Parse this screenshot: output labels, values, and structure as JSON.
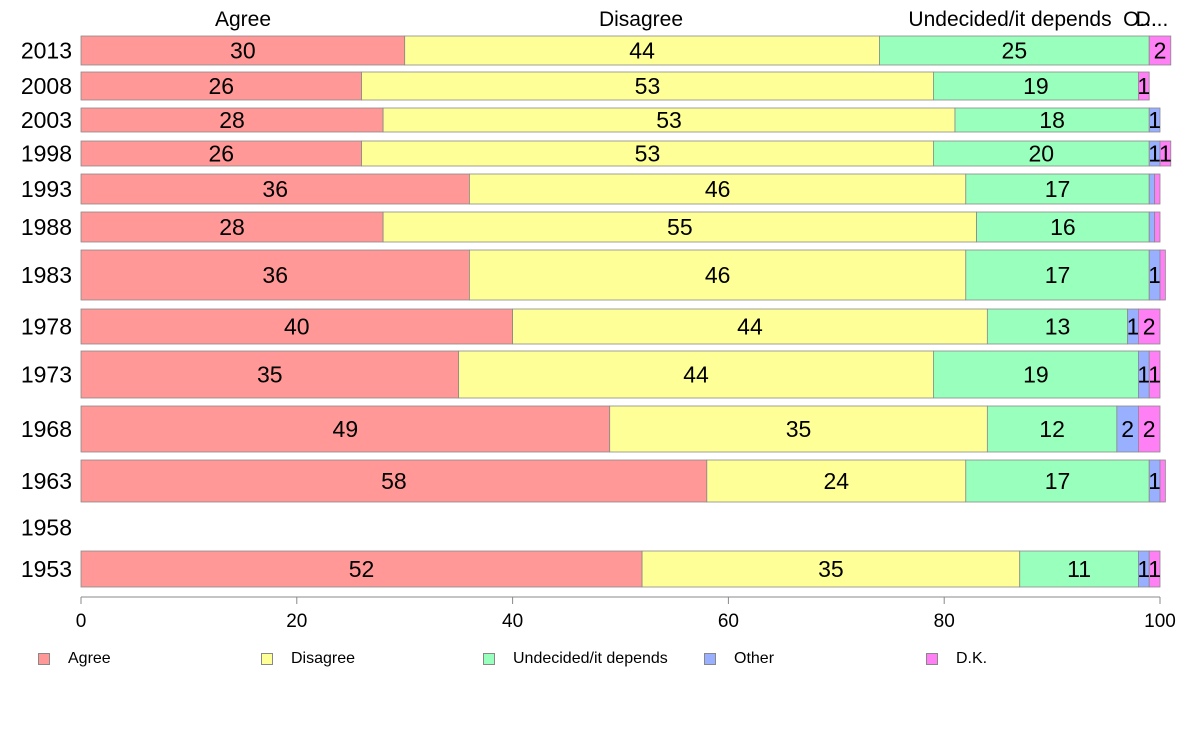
{
  "colors": {
    "Agree": "#ff9896",
    "Disagree": "#ffff98",
    "Undecided/it depends": "#98ffbd",
    "Other": "#98b0ff",
    "D.K.": "#ff7ff5"
  },
  "column_headers": [
    "Agree",
    "Disagree",
    "Undecided/it depends",
    "O...",
    "D..."
  ],
  "chart_data": {
    "type": "bar",
    "orientation": "horizontal",
    "stacked": true,
    "categories": [
      "2013",
      "2008",
      "2003",
      "1998",
      "1993",
      "1988",
      "1983",
      "1978",
      "1973",
      "1968",
      "1963",
      "1958",
      "1953"
    ],
    "series": [
      {
        "name": "Agree",
        "values": [
          30,
          26,
          28,
          26,
          36,
          28,
          36,
          40,
          35,
          49,
          58,
          null,
          52
        ]
      },
      {
        "name": "Disagree",
        "values": [
          44,
          53,
          53,
          53,
          46,
          55,
          46,
          44,
          44,
          35,
          24,
          null,
          35
        ]
      },
      {
        "name": "Undecided/it depends",
        "values": [
          25,
          19,
          18,
          20,
          17,
          16,
          17,
          13,
          19,
          12,
          17,
          null,
          11
        ]
      },
      {
        "name": "Other",
        "values": [
          0,
          0,
          1,
          1,
          0.5,
          0.5,
          1,
          1,
          1,
          2,
          1,
          null,
          1
        ]
      },
      {
        "name": "D.K.",
        "values": [
          2,
          1,
          0,
          1,
          0.5,
          0.5,
          0.5,
          2,
          1,
          2,
          0.5,
          null,
          1
        ]
      }
    ],
    "xlim": [
      0,
      100
    ],
    "xticks": [
      0,
      20,
      40,
      60,
      80,
      100
    ],
    "legend_position": "bottom",
    "grid": false
  }
}
